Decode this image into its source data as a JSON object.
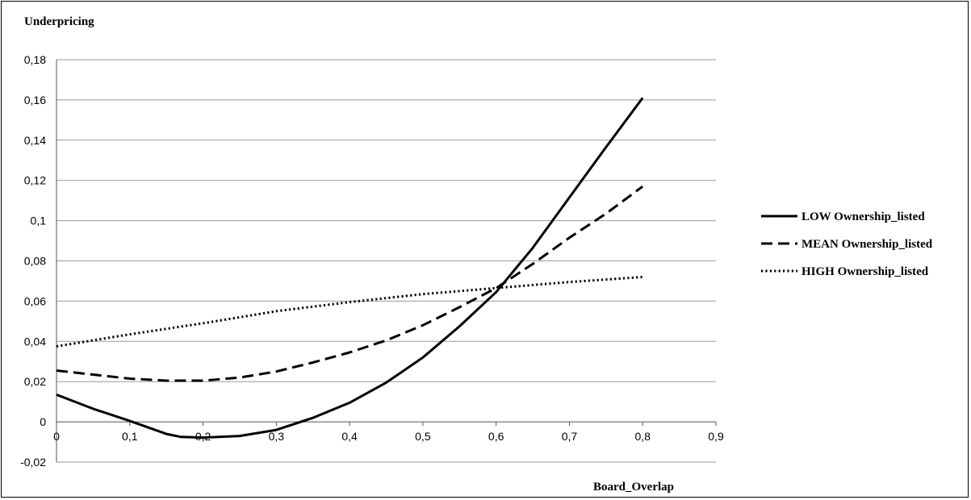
{
  "chart_data": {
    "type": "line",
    "ylabel": "Underpricing",
    "xlabel": "Board_Overlap",
    "xlim": [
      0,
      0.9
    ],
    "ylim": [
      -0.02,
      0.18
    ],
    "x_ticks": [
      "0",
      "0,1",
      "0,2",
      "0,3",
      "0,4",
      "0,5",
      "0,6",
      "0,7",
      "0,8",
      "0,9"
    ],
    "y_ticks": [
      "-0,02",
      "0",
      "0,02",
      "0,04",
      "0,06",
      "0,08",
      "0,1",
      "0,12",
      "0,14",
      "0,16",
      "0,18"
    ],
    "grid": "horizontal",
    "legend_position": "right",
    "series": [
      {
        "name": "LOW Ownership_listed",
        "style": "solid",
        "x": [
          0,
          0.05,
          0.1,
          0.15,
          0.17,
          0.2,
          0.25,
          0.3,
          0.35,
          0.4,
          0.45,
          0.5,
          0.55,
          0.6,
          0.65,
          0.7,
          0.75,
          0.8
        ],
        "y": [
          0.0135,
          0.0065,
          0.0005,
          -0.006,
          -0.0075,
          -0.0078,
          -0.007,
          -0.004,
          0.002,
          0.0095,
          0.0195,
          0.032,
          0.0475,
          0.0645,
          0.0865,
          0.1115,
          0.1365,
          0.161
        ]
      },
      {
        "name": "MEAN Ownership_listed",
        "style": "dashed",
        "x": [
          0,
          0.05,
          0.1,
          0.15,
          0.2,
          0.25,
          0.3,
          0.35,
          0.4,
          0.45,
          0.5,
          0.55,
          0.6,
          0.65,
          0.7,
          0.75,
          0.8
        ],
        "y": [
          0.0255,
          0.0235,
          0.0215,
          0.0205,
          0.0205,
          0.022,
          0.025,
          0.0295,
          0.0345,
          0.0405,
          0.048,
          0.057,
          0.0665,
          0.0785,
          0.0915,
          0.1035,
          0.117
        ]
      },
      {
        "name": "HIGH Ownership_listed",
        "style": "dotted",
        "x": [
          0,
          0.1,
          0.2,
          0.3,
          0.4,
          0.5,
          0.6,
          0.7,
          0.8
        ],
        "y": [
          0.0375,
          0.0435,
          0.049,
          0.055,
          0.0595,
          0.0635,
          0.0665,
          0.0695,
          0.072
        ]
      }
    ]
  }
}
